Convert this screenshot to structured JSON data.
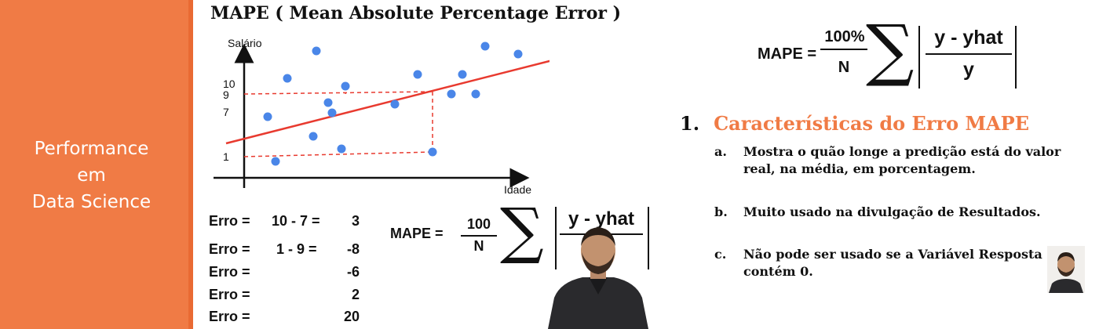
{
  "sidebar": {
    "title_lines": [
      "Performance",
      "em",
      "Data Science"
    ],
    "bg_color": "#f07b45"
  },
  "slide": {
    "title": "MAPE ( Mean Absolute Percentage Error )"
  },
  "scatter": {
    "ylabel": "Salário",
    "xlabel": "Idade",
    "y_ticks": [
      "10",
      "9",
      "7",
      "1"
    ],
    "point_color": "#4a86e8",
    "line_color": "#e83a2f"
  },
  "errors": [
    {
      "label": "Erro =",
      "expr": "10 - 7 =",
      "value": "3"
    },
    {
      "label": "Erro =",
      "expr": "1 - 9 =",
      "value": "-8"
    },
    {
      "label": "Erro =",
      "expr": "",
      "value": "-6"
    },
    {
      "label": "Erro =",
      "expr": "",
      "value": "2"
    },
    {
      "label": "Erro =",
      "expr": "",
      "value": "20"
    }
  ],
  "formula_small": {
    "label": "MAPE =",
    "numerator": "100",
    "denominator": "N",
    "abs_numerator": "y - yhat"
  },
  "formula_large": {
    "label": "MAPE =",
    "numerator": "100%",
    "denominator": "N",
    "abs_numerator": "y - yhat",
    "abs_denominator": "y"
  },
  "section": {
    "number": "1.",
    "title": "Características do Erro MAPE",
    "title_color": "#f07b45",
    "items": [
      {
        "marker": "a.",
        "lines": [
          "Mostra o quão longe a predição está do valor",
          "real, na média, em porcentagem."
        ]
      },
      {
        "marker": "b.",
        "lines": [
          "Muito usado na divulgação de Resultados."
        ]
      },
      {
        "marker": "c.",
        "lines": [
          "Não pode ser usado se a Variável Resposta",
          "contém 0."
        ]
      }
    ]
  }
}
